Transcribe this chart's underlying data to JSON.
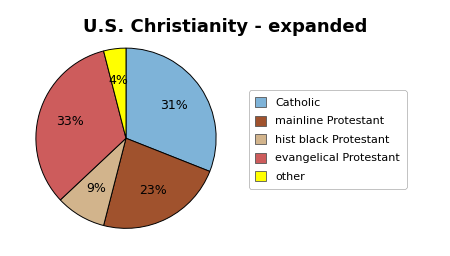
{
  "title": "U.S. Christianity - expanded",
  "labels": [
    "Catholic",
    "mainline Protestant",
    "hist black Protestant",
    "evangelical Protestant",
    "other"
  ],
  "values": [
    31,
    23,
    9,
    33,
    4
  ],
  "colors": [
    "#7EB3D8",
    "#A0522D",
    "#D2B48C",
    "#CD5C5C",
    "#FFFF00"
  ],
  "startangle": 90,
  "legend_labels": [
    "Catholic",
    "mainline Protestant",
    "hist black Protestant",
    "evangelical Protestant",
    "other"
  ],
  "background_color": "#ffffff",
  "title_fontsize": 13,
  "border_color": "#000000",
  "pctdistance": 0.65
}
